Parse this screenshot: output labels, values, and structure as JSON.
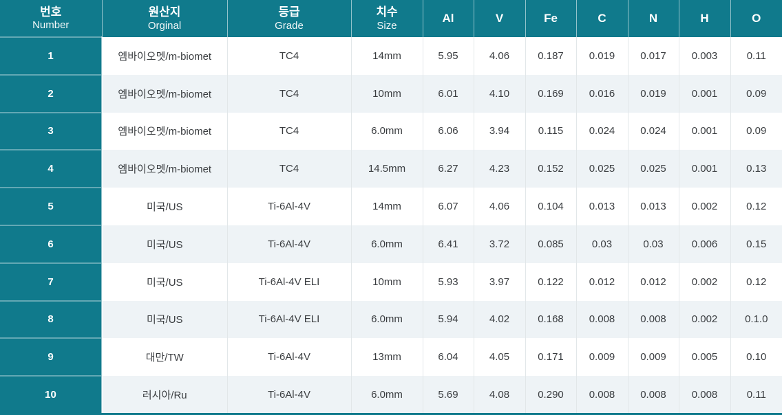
{
  "colors": {
    "header_teal": "#107a8c",
    "row_alt_bg": "#eef3f6",
    "row_base_bg": "#ffffff",
    "grid_line": "#e2e7e9",
    "body_text": "#3a3d40",
    "header_text": "#ffffff"
  },
  "chart_data": {
    "type": "table",
    "columns": [
      {
        "ko": "번호",
        "en": "Number"
      },
      {
        "ko": "원산지",
        "en": "Orginal"
      },
      {
        "ko": "등급",
        "en": "Grade"
      },
      {
        "ko": "치수",
        "en": "Size"
      },
      {
        "label": "Al"
      },
      {
        "label": "V"
      },
      {
        "label": "Fe"
      },
      {
        "label": "C"
      },
      {
        "label": "N"
      },
      {
        "label": "H"
      },
      {
        "label": "O"
      }
    ],
    "rows": [
      [
        "1",
        "엠바이오멧/m-biomet",
        "TC4",
        "14mm",
        "5.95",
        "4.06",
        "0.187",
        "0.019",
        "0.017",
        "0.003",
        "0.11"
      ],
      [
        "2",
        "엠바이오멧/m-biomet",
        "TC4",
        "10mm",
        "6.01",
        "4.10",
        "0.169",
        "0.016",
        "0.019",
        "0.001",
        "0.09"
      ],
      [
        "3",
        "엠바이오멧/m-biomet",
        "TC4",
        "6.0mm",
        "6.06",
        "3.94",
        "0.115",
        "0.024",
        "0.024",
        "0.001",
        "0.09"
      ],
      [
        "4",
        "엠바이오멧/m-biomet",
        "TC4",
        "14.5mm",
        "6.27",
        "4.23",
        "0.152",
        "0.025",
        "0.025",
        "0.001",
        "0.13"
      ],
      [
        "5",
        "미국/US",
        "Ti-6Al-4V",
        "14mm",
        "6.07",
        "4.06",
        "0.104",
        "0.013",
        "0.013",
        "0.002",
        "0.12"
      ],
      [
        "6",
        "미국/US",
        "Ti-6Al-4V",
        "6.0mm",
        "6.41",
        "3.72",
        "0.085",
        "0.03",
        "0.03",
        "0.006",
        "0.15"
      ],
      [
        "7",
        "미국/US",
        "Ti-6Al-4V ELI",
        "10mm",
        "5.93",
        "3.97",
        "0.122",
        "0.012",
        "0.012",
        "0.002",
        "0.12"
      ],
      [
        "8",
        "미국/US",
        "Ti-6Al-4V ELI",
        "6.0mm",
        "5.94",
        "4.02",
        "0.168",
        "0.008",
        "0.008",
        "0.002",
        "0.1.0"
      ],
      [
        "9",
        "대만/TW",
        "Ti-6Al-4V",
        "13mm",
        "6.04",
        "4.05",
        "0.171",
        "0.009",
        "0.009",
        "0.005",
        "0.10"
      ],
      [
        "10",
        "러시아/Ru",
        "Ti-6Al-4V",
        "6.0mm",
        "5.69",
        "4.08",
        "0.290",
        "0.008",
        "0.008",
        "0.008",
        "0.11"
      ]
    ]
  }
}
